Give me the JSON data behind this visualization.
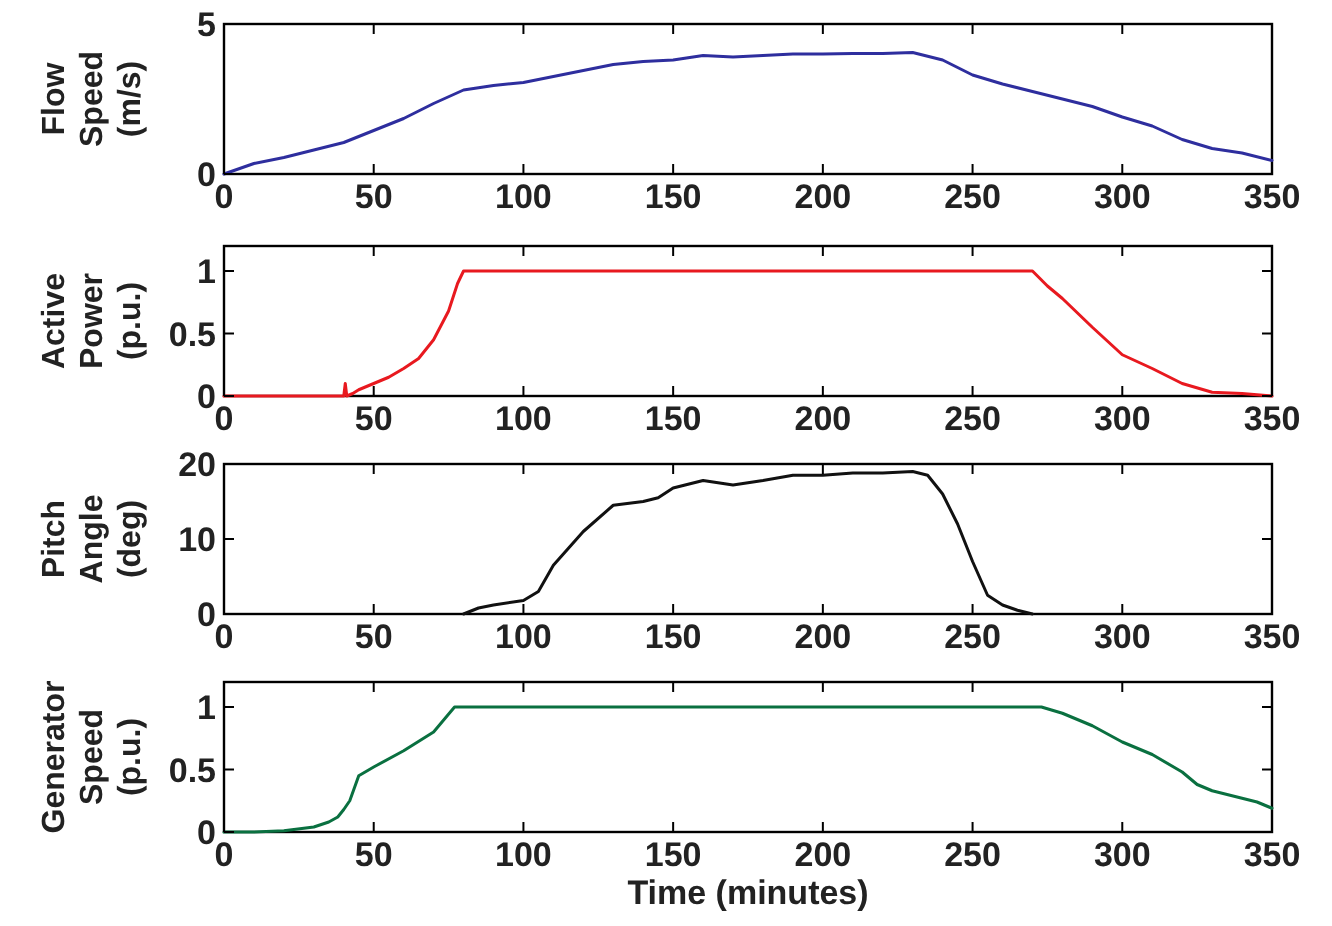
{
  "chart_data": [
    {
      "type": "line",
      "ylabel": "Flow Speed (m/s)",
      "color": "#2e2e9e",
      "xlim": [
        0,
        350
      ],
      "xticks": [
        0,
        50,
        100,
        150,
        200,
        250,
        300,
        350
      ],
      "ylim": [
        0,
        5
      ],
      "yticks": [
        0,
        5
      ],
      "x": [
        0,
        10,
        20,
        30,
        40,
        50,
        60,
        70,
        80,
        90,
        100,
        110,
        120,
        130,
        140,
        150,
        160,
        170,
        180,
        190,
        200,
        210,
        220,
        230,
        240,
        250,
        260,
        270,
        280,
        290,
        300,
        310,
        320,
        330,
        340,
        350
      ],
      "values": [
        0,
        0.35,
        0.55,
        0.8,
        1.05,
        1.45,
        1.85,
        2.35,
        2.8,
        2.95,
        3.05,
        3.25,
        3.45,
        3.65,
        3.75,
        3.8,
        3.95,
        3.9,
        3.95,
        4.0,
        4.0,
        4.02,
        4.02,
        4.05,
        3.8,
        3.3,
        3.0,
        2.75,
        2.5,
        2.25,
        1.9,
        1.6,
        1.15,
        0.85,
        0.7,
        0.45
      ]
    },
    {
      "type": "line",
      "ylabel": "Active Power (p.u.)",
      "color": "#e8191f",
      "xlim": [
        0,
        350
      ],
      "xticks": [
        0,
        50,
        100,
        150,
        200,
        250,
        300,
        350
      ],
      "ylim": [
        0,
        1.2
      ],
      "yticks": [
        0,
        0.5,
        1
      ],
      "x": [
        0,
        40,
        40.5,
        41,
        43,
        45,
        50,
        55,
        60,
        65,
        70,
        75,
        78,
        80,
        270,
        275,
        280,
        290,
        300,
        310,
        320,
        330,
        340,
        350
      ],
      "values": [
        0,
        0,
        0.1,
        0,
        0.02,
        0.05,
        0.1,
        0.15,
        0.22,
        0.3,
        0.45,
        0.68,
        0.9,
        1,
        1,
        0.88,
        0.78,
        0.55,
        0.33,
        0.22,
        0.1,
        0.03,
        0.02,
        0
      ]
    },
    {
      "type": "line",
      "ylabel": "Pitch Angle (deg)",
      "color": "#111111",
      "xlim": [
        0,
        350
      ],
      "xticks": [
        0,
        50,
        100,
        150,
        200,
        250,
        300,
        350
      ],
      "ylim": [
        0,
        20
      ],
      "yticks": [
        0,
        10,
        20
      ],
      "x": [
        80,
        85,
        90,
        100,
        105,
        110,
        120,
        130,
        140,
        145,
        150,
        160,
        170,
        180,
        190,
        200,
        210,
        220,
        230,
        235,
        240,
        245,
        250,
        255,
        260,
        265,
        270
      ],
      "values": [
        0,
        0.8,
        1.2,
        1.8,
        3,
        6.5,
        11,
        14.5,
        15,
        15.5,
        16.8,
        17.8,
        17.2,
        17.8,
        18.5,
        18.5,
        18.8,
        18.8,
        19,
        18.5,
        16,
        12,
        7,
        2.5,
        1.2,
        0.5,
        0
      ]
    },
    {
      "type": "line",
      "xlabel": "Time (minutes)",
      "ylabel": "Generator Speed (p.u.)",
      "color": "#0a7040",
      "xlim": [
        0,
        350
      ],
      "xticks": [
        0,
        50,
        100,
        150,
        200,
        250,
        300,
        350
      ],
      "ylim": [
        0,
        1.2
      ],
      "yticks": [
        0,
        0.5,
        1
      ],
      "x": [
        0,
        10,
        20,
        30,
        35,
        38,
        40,
        42,
        45,
        50,
        60,
        70,
        77,
        273,
        280,
        290,
        300,
        310,
        320,
        325,
        330,
        340,
        345,
        350
      ],
      "values": [
        0,
        0,
        0.01,
        0.04,
        0.08,
        0.12,
        0.18,
        0.25,
        0.45,
        0.52,
        0.65,
        0.8,
        1,
        1,
        0.95,
        0.85,
        0.72,
        0.62,
        0.48,
        0.38,
        0.33,
        0.27,
        0.24,
        0.19
      ]
    }
  ]
}
